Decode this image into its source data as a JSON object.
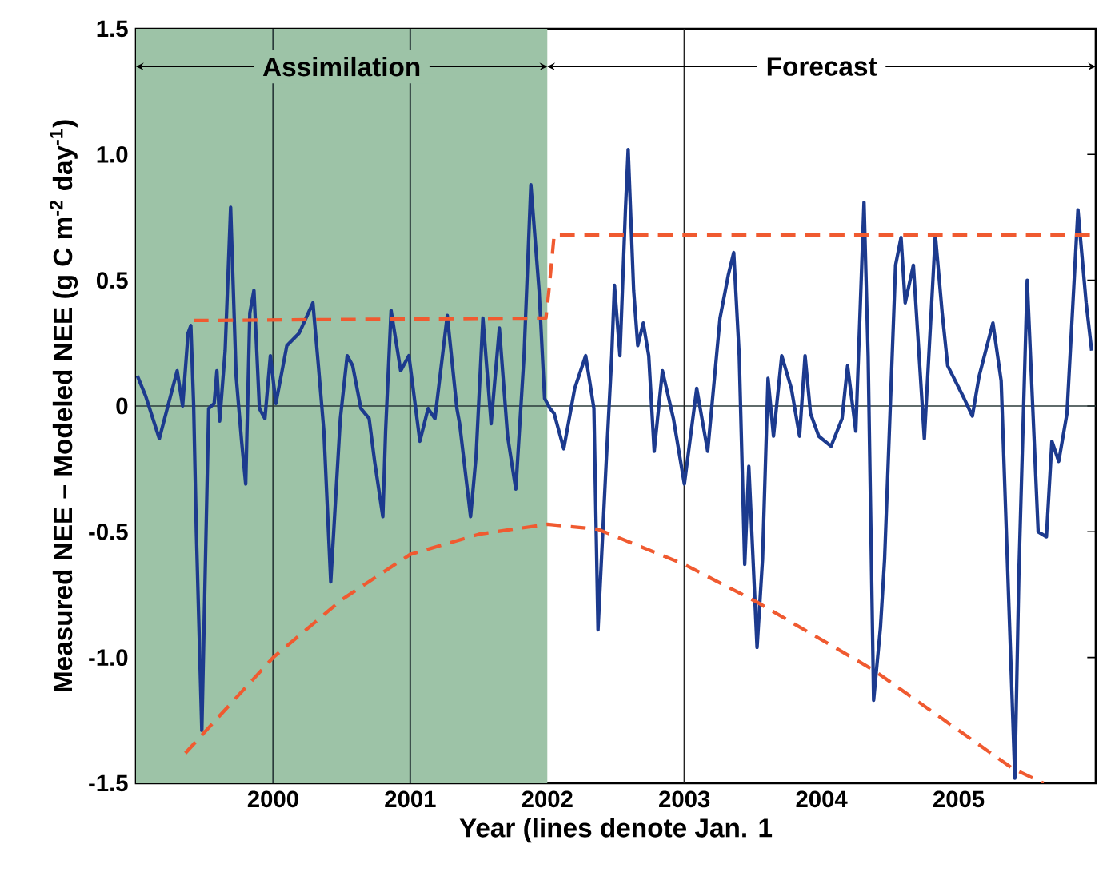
{
  "chart_data": {
    "type": "line",
    "xlabel": "Year (lines denote Jan. 1",
    "ylabel": "Measured NEE – Modeled NEE (g C m$^{-2}$ day$^{-1}$)",
    "xlim": [
      1999,
      2006
    ],
    "ylim": [
      -1.5,
      1.5
    ],
    "xticks": [
      2000,
      2001,
      2002,
      2003,
      2004,
      2005
    ],
    "yticks": [
      -1.5,
      {
        "value": -1,
        "label": "-1.0"
      },
      -0.5,
      0,
      0.5,
      {
        "value": 1,
        "label": "1.0"
      },
      1.5
    ],
    "grid": false,
    "marker": "none",
    "bands": [
      {
        "axis": "x",
        "from": 1999,
        "to": 2002,
        "label": "Assimilation",
        "color": "#9dc3a7"
      }
    ],
    "annotations": [
      "Forecast"
    ],
    "ref_lines": [
      {
        "axis": "y",
        "value": 0,
        "color": "#2a3a3a"
      },
      {
        "axis": "x",
        "value": 2000,
        "color": "#2a3a3a"
      },
      {
        "axis": "x",
        "value": 2001,
        "color": "#2a3a3a"
      },
      {
        "axis": "x",
        "value": 2003,
        "color": "#222222"
      }
    ],
    "series": [
      {
        "color": "#1c3a8e",
        "line_style": "solid",
        "x": [
          1999.01,
          1999.07,
          1999.17,
          1999.3,
          1999.34,
          1999.38,
          1999.4,
          1999.42,
          1999.44,
          1999.48,
          1999.53,
          1999.57,
          1999.59,
          1999.61,
          1999.65,
          1999.69,
          1999.73,
          1999.77,
          1999.8,
          1999.83,
          1999.86,
          1999.9,
          1999.94,
          1999.98,
          2000.02,
          2000.1,
          2000.19,
          2000.29,
          2000.33,
          2000.37,
          2000.42,
          2000.49,
          2000.54,
          2000.58,
          2000.64,
          2000.7,
          2000.74,
          2000.8,
          2000.82,
          2000.86,
          2000.93,
          2000.99,
          2001.07,
          2001.13,
          2001.18,
          2001.27,
          2001.34,
          2001.36,
          2001.44,
          2001.48,
          2001.53,
          2001.59,
          2001.65,
          2001.71,
          2001.77,
          2001.83,
          2001.88,
          2001.94,
          2001.98,
          2002.02,
          2002.05,
          2002.12,
          2002.2,
          2002.28,
          2002.34,
          2002.37,
          2002.43,
          2002.47,
          2002.49,
          2002.53,
          2002.57,
          2002.59,
          2002.63,
          2002.66,
          2002.7,
          2002.74,
          2002.78,
          2002.84,
          2002.92,
          2003.0,
          2003.09,
          2003.17,
          2003.26,
          2003.32,
          2003.36,
          2003.4,
          2003.44,
          2003.47,
          2003.53,
          2003.57,
          2003.61,
          2003.65,
          2003.71,
          2003.78,
          2003.84,
          2003.88,
          2003.92,
          2003.98,
          2004.07,
          2004.15,
          2004.19,
          2004.25,
          2004.31,
          2004.34,
          2004.38,
          2004.43,
          2004.46,
          2004.54,
          2004.58,
          2004.61,
          2004.67,
          2004.75,
          2004.83,
          2004.88,
          2004.92,
          2005.04,
          2005.1,
          2005.15,
          2005.25,
          2005.31,
          2005.41,
          2005.44,
          2005.5,
          2005.58,
          2005.64,
          2005.68,
          2005.73,
          2005.79,
          2005.87,
          2005.93,
          2005.97
        ],
        "values": [
          0.12,
          0.04,
          -0.13,
          0.14,
          0.0,
          0.29,
          0.32,
          0.01,
          -0.5,
          -1.29,
          -0.01,
          0.01,
          0.14,
          -0.06,
          0.22,
          0.79,
          0.12,
          -0.14,
          -0.31,
          0.37,
          0.46,
          -0.01,
          -0.05,
          0.2,
          0.01,
          0.24,
          0.29,
          0.41,
          0.16,
          -0.1,
          -0.7,
          -0.05,
          0.2,
          0.16,
          -0.01,
          -0.05,
          -0.22,
          -0.44,
          -0.1,
          0.38,
          0.14,
          0.2,
          -0.14,
          -0.01,
          -0.05,
          0.36,
          -0.01,
          -0.07,
          -0.44,
          -0.2,
          0.35,
          -0.07,
          0.31,
          -0.12,
          -0.33,
          0.2,
          0.88,
          0.46,
          0.03,
          -0.01,
          -0.03,
          -0.17,
          0.07,
          0.2,
          -0.01,
          -0.89,
          -0.22,
          0.2,
          0.48,
          0.2,
          0.78,
          1.02,
          0.46,
          0.24,
          0.33,
          0.2,
          -0.18,
          0.14,
          -0.05,
          -0.31,
          0.07,
          -0.18,
          0.35,
          0.52,
          0.61,
          0.2,
          -0.63,
          -0.24,
          -0.96,
          -0.61,
          0.11,
          -0.12,
          0.2,
          0.07,
          -0.12,
          0.2,
          -0.03,
          -0.12,
          -0.16,
          -0.05,
          0.16,
          -0.1,
          0.81,
          0.2,
          -1.17,
          -0.88,
          -0.61,
          0.56,
          0.67,
          0.41,
          0.56,
          -0.13,
          0.68,
          0.37,
          0.16,
          0.03,
          -0.04,
          0.12,
          0.33,
          0.1,
          -1.48,
          -0.65,
          0.5,
          -0.5,
          -0.52,
          -0.14,
          -0.22,
          -0.03,
          0.78,
          0.41,
          0.22
        ]
      },
      {
        "color": "#f05a30",
        "line_style": "dashed",
        "x": [
          1999.42,
          2001.99,
          2002.01,
          2002.05,
          2006
        ],
        "values": [
          0.34,
          0.35,
          0.45,
          0.68,
          0.68
        ]
      },
      {
        "color": "#f05a30",
        "line_style": "dashed",
        "x": [
          1999.36,
          2000,
          2000.5,
          2001,
          2001.5,
          2002,
          2002.37,
          2003,
          2003.53,
          2004.38,
          2005.39,
          2005.62
        ],
        "values": [
          -1.38,
          -1.0,
          -0.77,
          -0.59,
          -0.51,
          -0.47,
          -0.49,
          -0.63,
          -0.78,
          -1.05,
          -1.44,
          -1.5
        ]
      }
    ]
  }
}
